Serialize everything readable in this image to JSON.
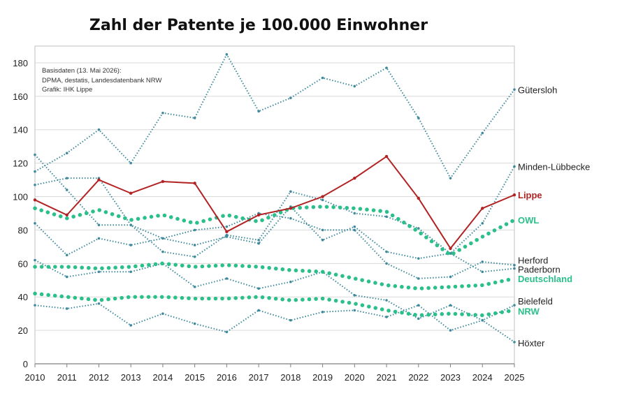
{
  "chart_data": {
    "type": "line",
    "title": "Zahl der Patente je 100.000 Einwohner",
    "note_lines": [
      "Basisdaten (13. Mai 2026):",
      "DPMA, destatis, Landesdatenbank NRW",
      "Grafik: IHK Lippe"
    ],
    "xlabel": "",
    "ylabel": "",
    "x": [
      2010,
      2011,
      2012,
      2013,
      2014,
      2015,
      2016,
      2017,
      2018,
      2019,
      2020,
      2021,
      2022,
      2023,
      2024,
      2025
    ],
    "ylim": [
      0,
      190
    ],
    "yticks": [
      0,
      20,
      40,
      60,
      80,
      100,
      120,
      140,
      160,
      180
    ],
    "grid": "horizontal",
    "series": [
      {
        "name": "Gütersloh",
        "style": "thin-dotted",
        "color": "#3e8a9c",
        "values": [
          115,
          126,
          140,
          120,
          150,
          147,
          185,
          151,
          159,
          171,
          166,
          177,
          147,
          111,
          138,
          164
        ]
      },
      {
        "name": "Minden-Lübbecke",
        "style": "thin-dotted",
        "color": "#3e8a9c",
        "values": [
          107,
          111,
          111,
          83,
          67,
          64,
          77,
          74,
          103,
          98,
          90,
          88,
          81,
          66,
          84,
          118
        ]
      },
      {
        "name": "Herford",
        "style": "thin-dotted",
        "color": "#3e8a9c",
        "values": [
          125,
          104,
          83,
          83,
          75,
          80,
          82,
          90,
          87,
          80,
          80,
          60,
          51,
          52,
          61,
          59
        ]
      },
      {
        "name": "Paderborn",
        "style": "thin-dotted",
        "color": "#3e8a9c",
        "values": [
          84,
          65,
          75,
          71,
          75,
          71,
          76,
          72,
          94,
          74,
          82,
          67,
          63,
          66,
          55,
          57
        ]
      },
      {
        "name": "Bielefeld",
        "style": "thin-dotted",
        "color": "#3e8a9c",
        "values": [
          62,
          52,
          55,
          55,
          60,
          46,
          51,
          45,
          49,
          55,
          41,
          38,
          27,
          35,
          26,
          35
        ]
      },
      {
        "name": "Höxter",
        "style": "thin-dotted",
        "color": "#3e8a9c",
        "values": [
          35,
          33,
          36,
          23,
          30,
          24,
          19,
          32,
          26,
          31,
          32,
          28,
          35,
          20,
          26,
          13
        ]
      },
      {
        "name": "Lippe",
        "style": "solid",
        "color": "#b22222",
        "values": [
          98,
          89,
          110,
          102,
          109,
          108,
          79,
          89,
          93,
          100,
          111,
          124,
          99,
          69,
          93,
          101
        ]
      },
      {
        "name": "OWL",
        "style": "bold-dotted",
        "color": "#2bbf8a",
        "values": [
          93,
          87,
          92,
          86,
          89,
          84,
          89,
          85,
          93,
          94,
          93,
          91,
          79,
          65,
          76,
          86
        ]
      },
      {
        "name": "Deutschland",
        "style": "bold-dotted",
        "color": "#2bbf8a",
        "values": [
          58,
          58,
          57,
          58,
          60,
          58,
          59,
          58,
          56,
          55,
          51,
          47,
          45,
          46,
          47,
          51
        ]
      },
      {
        "name": "NRW",
        "style": "bold-dotted",
        "color": "#2bbf8a",
        "values": [
          42,
          40,
          38,
          40,
          40,
          39,
          39,
          40,
          38,
          39,
          36,
          32,
          29,
          30,
          29,
          32
        ]
      }
    ],
    "series_labels": [
      {
        "text": "Gütersloh",
        "color": "#222222",
        "bold": false,
        "y": 164
      },
      {
        "text": "Minden-Lübbecke",
        "color": "#222222",
        "bold": false,
        "y": 118
      },
      {
        "text": "Lippe",
        "color": "#b22222",
        "bold": true,
        "y": 101
      },
      {
        "text": "OWL",
        "color": "#2bbf8a",
        "bold": true,
        "y": 86
      },
      {
        "text": "Herford",
        "color": "#222222",
        "bold": false,
        "y": 62
      },
      {
        "text": "Paderborn",
        "color": "#222222",
        "bold": false,
        "y": 56.5
      },
      {
        "text": "Deutschland",
        "color": "#2bbf8a",
        "bold": true,
        "y": 51
      },
      {
        "text": "Bielefeld",
        "color": "#222222",
        "bold": false,
        "y": 37.5
      },
      {
        "text": "NRW",
        "color": "#2bbf8a",
        "bold": true,
        "y": 31.5
      },
      {
        "text": "Höxter",
        "color": "#222222",
        "bold": false,
        "y": 12.5
      }
    ]
  }
}
